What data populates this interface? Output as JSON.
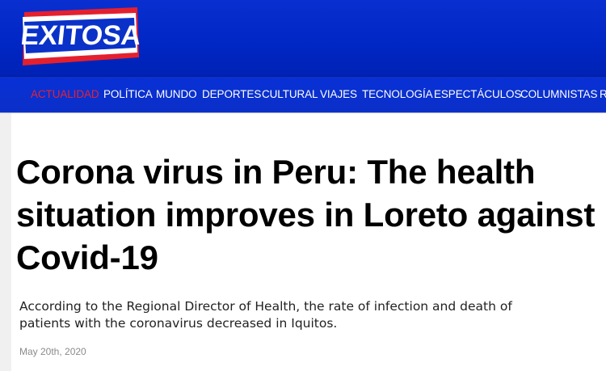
{
  "site": {
    "logo_text": "EXITOSA",
    "colors": {
      "brand_blue": "#0026c4",
      "accent_red": "#e0243a"
    }
  },
  "nav": {
    "items": [
      {
        "label": "ACTUALIDAD",
        "active": true
      },
      {
        "label": "POLÍTICA"
      },
      {
        "label": "MUNDO"
      },
      {
        "label": "DEPORTES"
      },
      {
        "label": "CULTURAL"
      },
      {
        "label": "VIAJES"
      },
      {
        "label": "TECNOLOGÍA"
      },
      {
        "label": "ESPECTÁCULOS"
      },
      {
        "label": "COLUMNISTAS"
      },
      {
        "label": "R"
      }
    ]
  },
  "article": {
    "title": "Corona virus in Peru: The health situation improves in Loreto against Covid-19",
    "subtitle": "According to the Regional Director of Health, the rate of infection and death of patients with the coronavirus decreased in Iquitos.",
    "date": "May 20th, 2020"
  }
}
